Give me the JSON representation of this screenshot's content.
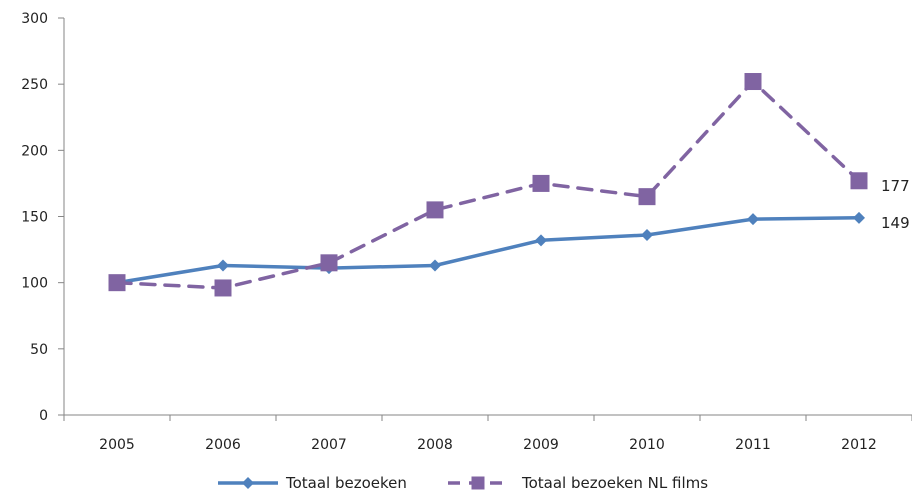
{
  "chart_data": {
    "type": "line",
    "title": "",
    "xlabel": "",
    "ylabel": "",
    "categories": [
      "2005",
      "2006",
      "2007",
      "2008",
      "2009",
      "2010",
      "2011",
      "2012"
    ],
    "ylim": [
      0,
      300
    ],
    "yticks": [
      "0",
      "50",
      "100",
      "150",
      "200",
      "250",
      "300"
    ],
    "grid": false,
    "legend_position": "bottom",
    "series": [
      {
        "name": "Totaal bezoeken",
        "values": [
          100,
          113,
          111,
          113,
          132,
          136,
          148,
          149
        ],
        "color": "#4F81BD",
        "line_style": "solid",
        "marker": "diamond",
        "end_label": "149"
      },
      {
        "name": "Totaal bezoeken NL films",
        "values": [
          100,
          96,
          115,
          155,
          175,
          165,
          252,
          177
        ],
        "color": "#8064A2",
        "line_style": "dashed",
        "marker": "square",
        "end_label": "177"
      }
    ]
  }
}
